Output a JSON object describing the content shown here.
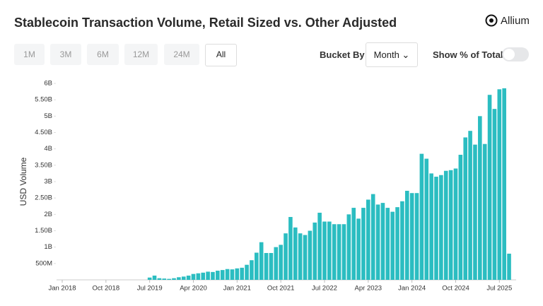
{
  "header": {
    "title": "Stablecoin Transaction Volume, Retail Sized vs. Other Adjusted",
    "brand": "Allium"
  },
  "controls": {
    "ranges": [
      "1M",
      "3M",
      "6M",
      "12M",
      "24M",
      "All"
    ],
    "bucket_label": "Bucket By",
    "bucket_value": "Month",
    "toggle_label": "Show % of Total"
  },
  "chart_data": {
    "type": "bar",
    "ylabel": "USD Volume",
    "color": "#2bbdc1",
    "grid": false,
    "categories": [
      "Jan 2018",
      null,
      null,
      null,
      null,
      null,
      null,
      null,
      null,
      "Oct 2018",
      null,
      null,
      null,
      null,
      null,
      null,
      null,
      null,
      "Jul 2019",
      null,
      null,
      null,
      null,
      null,
      null,
      null,
      null,
      "Apr 2020",
      null,
      null,
      null,
      null,
      null,
      null,
      null,
      null,
      "Jan 2021",
      null,
      null,
      null,
      null,
      null,
      null,
      null,
      null,
      "Oct 2021",
      null,
      null,
      null,
      null,
      null,
      null,
      null,
      null,
      "Jul 2022",
      null,
      null,
      null,
      null,
      null,
      null,
      null,
      null,
      "Apr 2023",
      null,
      null,
      null,
      null,
      null,
      null,
      null,
      null,
      "Jan 2024",
      null,
      null,
      null,
      null,
      null,
      null,
      null,
      null,
      "Oct 2024",
      null,
      null,
      null,
      null,
      null,
      null,
      null,
      null,
      "Jul 2025",
      null,
      null
    ],
    "values": [
      0,
      0,
      0,
      0,
      0,
      0,
      0,
      0,
      0,
      0,
      0,
      0,
      0,
      0,
      0,
      0,
      0,
      0,
      70000000,
      130000000,
      50000000,
      40000000,
      30000000,
      50000000,
      80000000,
      100000000,
      130000000,
      180000000,
      200000000,
      220000000,
      250000000,
      240000000,
      280000000,
      300000000,
      330000000,
      320000000,
      350000000,
      370000000,
      460000000,
      600000000,
      830000000,
      1150000000,
      820000000,
      820000000,
      1000000000,
      1070000000,
      1420000000,
      1920000000,
      1600000000,
      1420000000,
      1370000000,
      1500000000,
      1750000000,
      2050000000,
      1780000000,
      1780000000,
      1700000000,
      1700000000,
      1700000000,
      2000000000,
      2200000000,
      1870000000,
      2200000000,
      2450000000,
      2620000000,
      2300000000,
      2350000000,
      2200000000,
      2080000000,
      2220000000,
      2400000000,
      2720000000,
      2650000000,
      2650000000,
      3850000000,
      3700000000,
      3250000000,
      3150000000,
      3200000000,
      3330000000,
      3350000000,
      3400000000,
      3820000000,
      4350000000,
      4550000000,
      4130000000,
      5000000000,
      4150000000,
      5650000000,
      5220000000,
      5820000000,
      5850000000,
      800000000
    ],
    "ylim": [
      0,
      6000000000
    ],
    "yticks": [
      {
        "value": 500000000,
        "label": "500M"
      },
      {
        "value": 1000000000,
        "label": "1B"
      },
      {
        "value": 1500000000,
        "label": "1.50B"
      },
      {
        "value": 2000000000,
        "label": "2B"
      },
      {
        "value": 2500000000,
        "label": "2.50B"
      },
      {
        "value": 3000000000,
        "label": "3B"
      },
      {
        "value": 3500000000,
        "label": "3.50B"
      },
      {
        "value": 4000000000,
        "label": "4B"
      },
      {
        "value": 4500000000,
        "label": "4.50B"
      },
      {
        "value": 5000000000,
        "label": "5B"
      },
      {
        "value": 5500000000,
        "label": "5.50B"
      },
      {
        "value": 6000000000,
        "label": "6B"
      }
    ]
  }
}
